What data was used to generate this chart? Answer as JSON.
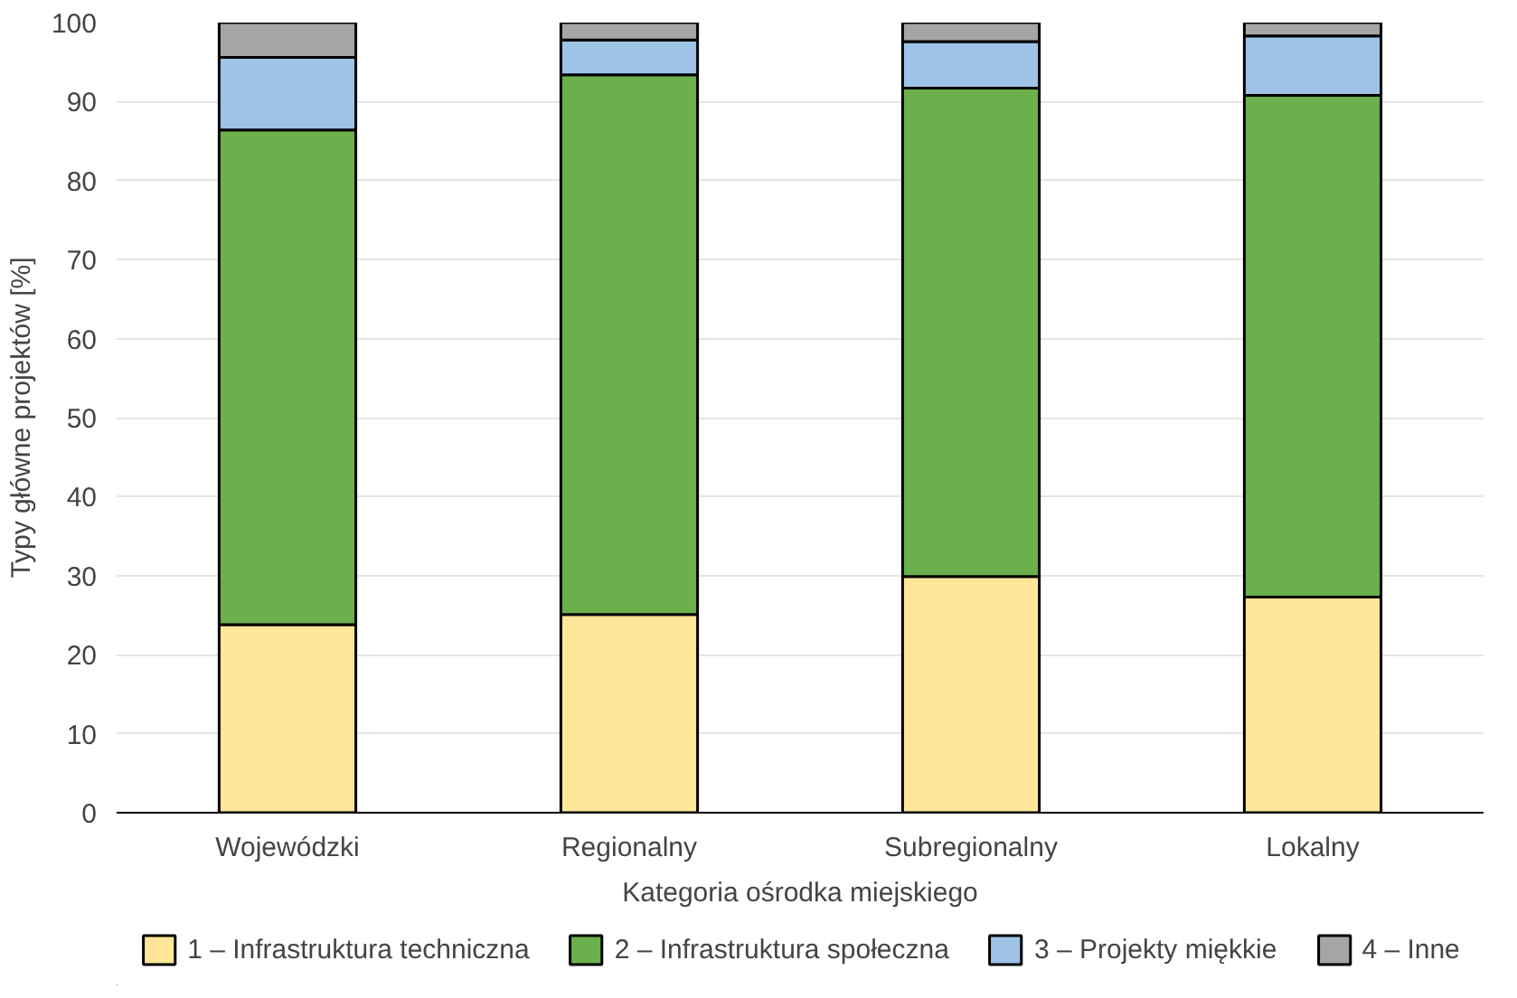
{
  "chart_data": {
    "type": "bar",
    "stacked": true,
    "categories": [
      "Wojewódzki",
      "Regionalny",
      "Subregionalny",
      "Lokalny"
    ],
    "xlabel": "Kategoria ośrodka miejskiego",
    "ylabel": "Typy główne projektów [%]",
    "ylim": [
      0,
      100
    ],
    "yticks": [
      0,
      10,
      20,
      30,
      40,
      50,
      60,
      70,
      80,
      90,
      100
    ],
    "grid": "y",
    "legend": "bottom",
    "series": [
      {
        "name": "1 – Infrastruktura techniczna",
        "color": "#ffe699",
        "values": [
          23.8,
          25.1,
          29.9,
          27.3
        ]
      },
      {
        "name": "2 – Infrastruktura społeczna",
        "color": "#6ab04c",
        "values": [
          62.6,
          68.3,
          61.8,
          63.5
        ]
      },
      {
        "name": "3 – Projekty miękkie",
        "color": "#9dc3e6",
        "values": [
          9.2,
          4.4,
          5.9,
          7.5
        ]
      },
      {
        "name": "4 – Inne",
        "color": "#a5a5a5",
        "values": [
          4.4,
          2.2,
          2.4,
          1.7
        ]
      }
    ]
  }
}
